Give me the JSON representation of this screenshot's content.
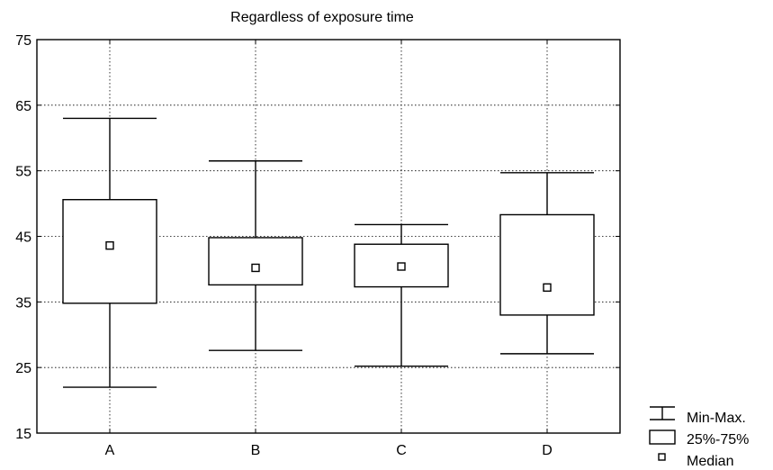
{
  "chart_data": {
    "type": "box",
    "title": "Regardless of exposure time",
    "xlabel": "",
    "ylabel": "",
    "ylim": [
      15,
      75
    ],
    "yticks": [
      "15",
      "25",
      "35",
      "45",
      "55",
      "65",
      "75"
    ],
    "categories": [
      "A",
      "B",
      "C",
      "D"
    ],
    "grid": true,
    "legend_position": "bottom-right",
    "series": [
      {
        "category": "A",
        "min": 22.0,
        "q1": 34.8,
        "median": 43.6,
        "q3": 50.6,
        "max": 63.0
      },
      {
        "category": "B",
        "min": 27.6,
        "q1": 37.6,
        "median": 40.2,
        "q3": 44.8,
        "max": 56.5
      },
      {
        "category": "C",
        "min": 25.2,
        "q1": 37.3,
        "median": 40.4,
        "q3": 43.8,
        "max": 46.8
      },
      {
        "category": "D",
        "min": 27.1,
        "q1": 33.0,
        "median": 37.2,
        "q3": 48.3,
        "max": 54.7
      }
    ],
    "legend": {
      "minmax": "Min-Max.",
      "box": "25%-75%",
      "median": "Median"
    }
  }
}
